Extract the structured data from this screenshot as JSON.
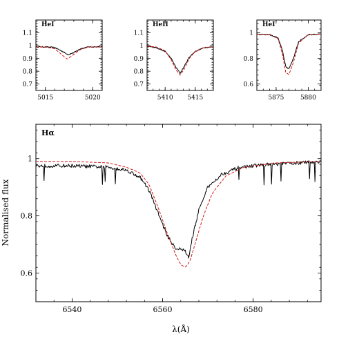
{
  "colors": {
    "observed": "#000000",
    "model": "#d21818"
  },
  "chart_data": [
    {
      "type": "line",
      "panel_label": "HeI",
      "xlim": [
        5014,
        5021
      ],
      "ylim": [
        0.65,
        1.2
      ],
      "xticks": [
        5015,
        5020
      ],
      "yticks": [
        0.7,
        0.8,
        0.9,
        1,
        1.1
      ],
      "xlabel": "",
      "ylabel": "",
      "series": [
        {
          "style": "solid",
          "x": [
            5014,
            5015,
            5016,
            5016.8,
            5017.4,
            5018,
            5018.7,
            5019.5,
            5021
          ],
          "y": [
            0.99,
            0.99,
            0.985,
            0.955,
            0.93,
            0.945,
            0.975,
            0.99,
            0.99
          ]
        },
        {
          "style": "dashed",
          "x": [
            5014,
            5015,
            5016,
            5016.8,
            5017.3,
            5017.8,
            5018.6,
            5019.5,
            5021
          ],
          "y": [
            0.99,
            0.99,
            0.975,
            0.925,
            0.895,
            0.92,
            0.965,
            0.99,
            0.99
          ]
        }
      ]
    },
    {
      "type": "line",
      "panel_label": "HeII",
      "xlim": [
        5407,
        5418
      ],
      "ylim": [
        0.65,
        1.2
      ],
      "xticks": [
        5410,
        5415
      ],
      "yticks": [
        0.7,
        0.8,
        0.9,
        1,
        1.1
      ],
      "xlabel": "",
      "ylabel": "",
      "series": [
        {
          "style": "solid",
          "x": [
            5407,
            5408.5,
            5410,
            5411,
            5411.8,
            5412.5,
            5413.2,
            5414,
            5415,
            5416.5,
            5418
          ],
          "y": [
            0.995,
            0.985,
            0.955,
            0.9,
            0.83,
            0.785,
            0.84,
            0.91,
            0.955,
            0.985,
            0.99
          ]
        },
        {
          "style": "dashed",
          "x": [
            5407,
            5408.5,
            5410,
            5411,
            5411.8,
            5412.5,
            5413.2,
            5414,
            5415,
            5416.5,
            5418
          ],
          "y": [
            0.995,
            0.99,
            0.96,
            0.89,
            0.81,
            0.77,
            0.82,
            0.9,
            0.955,
            0.985,
            0.99
          ]
        }
      ]
    },
    {
      "type": "line",
      "panel_label": "HeI",
      "xlim": [
        5872,
        5882
      ],
      "ylim": [
        0.55,
        1.1
      ],
      "xticks": [
        5875,
        5880
      ],
      "yticks": [
        0.6,
        0.8,
        1
      ],
      "xlabel": "",
      "ylabel": "",
      "series": [
        {
          "style": "solid",
          "x": [
            5872,
            5874,
            5875.3,
            5876,
            5876.5,
            5877,
            5877.7,
            5878.5,
            5880,
            5882
          ],
          "y": [
            0.99,
            0.985,
            0.96,
            0.86,
            0.735,
            0.72,
            0.8,
            0.93,
            0.985,
            0.99
          ]
        },
        {
          "style": "dashed",
          "x": [
            5872,
            5874,
            5875.3,
            5876,
            5876.5,
            5877,
            5877.7,
            5878.5,
            5880,
            5882
          ],
          "y": [
            0.99,
            0.985,
            0.955,
            0.83,
            0.69,
            0.675,
            0.77,
            0.92,
            0.985,
            0.99
          ]
        }
      ]
    },
    {
      "type": "line",
      "panel_label": "Hα",
      "xlim": [
        6532,
        6595
      ],
      "ylim": [
        0.5,
        1.12
      ],
      "xticks": [
        6540,
        6560,
        6580
      ],
      "yticks": [
        0.6,
        0.8,
        1
      ],
      "xlabel": "λ(Å)",
      "ylabel": "Normalised flux",
      "series": [
        {
          "style": "solid",
          "x": [
            6532,
            6540,
            6548,
            6552,
            6555,
            6557,
            6559,
            6561,
            6563,
            6564,
            6565,
            6565.8,
            6566.5,
            6568,
            6570,
            6573,
            6577,
            6582,
            6590,
            6595
          ],
          "y": [
            0.975,
            0.975,
            0.97,
            0.96,
            0.935,
            0.89,
            0.81,
            0.73,
            0.685,
            0.685,
            0.675,
            0.655,
            0.72,
            0.82,
            0.9,
            0.945,
            0.97,
            0.978,
            0.985,
            0.99
          ]
        },
        {
          "style": "dashed",
          "x": [
            6532,
            6540,
            6548,
            6552,
            6555,
            6557,
            6559,
            6561,
            6563,
            6564,
            6565,
            6566,
            6567.5,
            6569,
            6571,
            6574,
            6578,
            6585,
            6595
          ],
          "y": [
            0.99,
            0.99,
            0.985,
            0.97,
            0.95,
            0.91,
            0.83,
            0.74,
            0.66,
            0.63,
            0.62,
            0.64,
            0.72,
            0.8,
            0.88,
            0.94,
            0.97,
            0.985,
            0.99
          ]
        }
      ]
    }
  ]
}
